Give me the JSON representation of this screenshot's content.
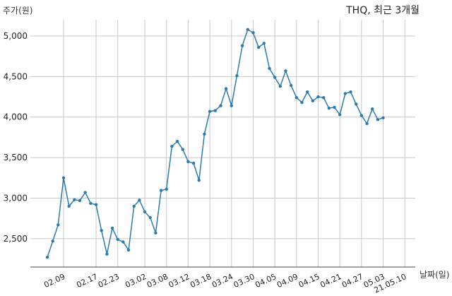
{
  "chart_data": {
    "type": "line",
    "title": "THQ, 최근 3개월",
    "ylabel": "주가(원)",
    "xlabel": "날짜(일)",
    "ylim": [
      2150,
      5200
    ],
    "yticks": [
      2500,
      3000,
      3500,
      4000,
      4500,
      5000
    ],
    "ytick_labels": [
      "2,500",
      "3,000",
      "3,500",
      "4,000",
      "4,500",
      "5,000"
    ],
    "xtick_labels": [
      "02.09",
      "02.17",
      "02.23",
      "03.02",
      "03.08",
      "03.12",
      "03.18",
      "03.24",
      "03.30",
      "04.05",
      "04.09",
      "04.15",
      "04.21",
      "04.27",
      "05.03",
      "21.05.10"
    ],
    "xtick_index": [
      3,
      9,
      13,
      18,
      22,
      26,
      30,
      34,
      38,
      42,
      46,
      50,
      54,
      58,
      62,
      66
    ],
    "grid": true,
    "line_color": "#2b7bb0",
    "series": [
      {
        "values": [
          2270,
          2470,
          2670,
          3250,
          2900,
          2980,
          2970,
          3070,
          2935,
          2920,
          2600,
          2310,
          2630,
          2490,
          2460,
          2360,
          2900,
          2975,
          2830,
          2760,
          2570,
          3095,
          3110,
          3640,
          3700,
          3600,
          3450,
          3430,
          3220,
          3790,
          4070,
          4080,
          4140,
          4350,
          4140,
          4510,
          4880,
          5080,
          5040,
          4860,
          4910,
          4600,
          4490,
          4380,
          4570,
          4390,
          4240,
          4180,
          4310,
          4200,
          4250,
          4240,
          4110,
          4120,
          4030,
          4290,
          4310,
          4160,
          4020,
          3920,
          4100,
          3970,
          3990
        ]
      }
    ]
  }
}
